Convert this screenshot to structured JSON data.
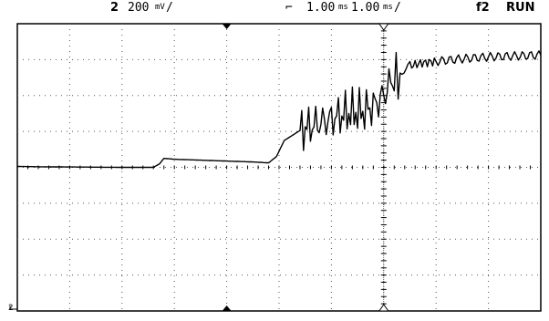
{
  "status": {
    "channel": "2",
    "volts_per_div": "200",
    "volts_unit": "mV",
    "trigger_level": "1.00",
    "trigger_unit": "ms",
    "time_per_div": "1.00",
    "time_unit": "ms",
    "trigger_source": "f2",
    "run_state": "RUN"
  },
  "channel_marker": "2",
  "chart_data": {
    "type": "line",
    "title": "",
    "xlabel": "",
    "ylabel": "",
    "grid": true,
    "xlim": [
      -7,
      3
    ],
    "ylim": [
      -800,
      800
    ],
    "series": [
      {
        "values_note": "",
        "x": [
          -7.0,
          -6.5,
          -6.0,
          -5.5,
          -5.0,
          -4.4,
          -4.28,
          -4.2,
          -4.0,
          -3.5,
          -3.0,
          -2.5,
          -2.2,
          -2.05,
          -1.9,
          -1.6,
          -1.3,
          -1.0,
          -0.7,
          -0.4,
          -0.2,
          0.0,
          0.1,
          0.2,
          0.35,
          0.5,
          0.7,
          1.0,
          1.5,
          2.0,
          2.5,
          3.0
        ],
        "y": [
          5,
          3,
          2,
          1,
          0,
          0,
          20,
          50,
          45,
          40,
          35,
          30,
          25,
          60,
          150,
          205,
          240,
          270,
          300,
          310,
          340,
          400,
          460,
          500,
          540,
          565,
          580,
          590,
          605,
          615,
          620,
          625
        ]
      }
    ],
    "markers": {
      "trigger_time": 0,
      "channel_ground": -800
    }
  }
}
